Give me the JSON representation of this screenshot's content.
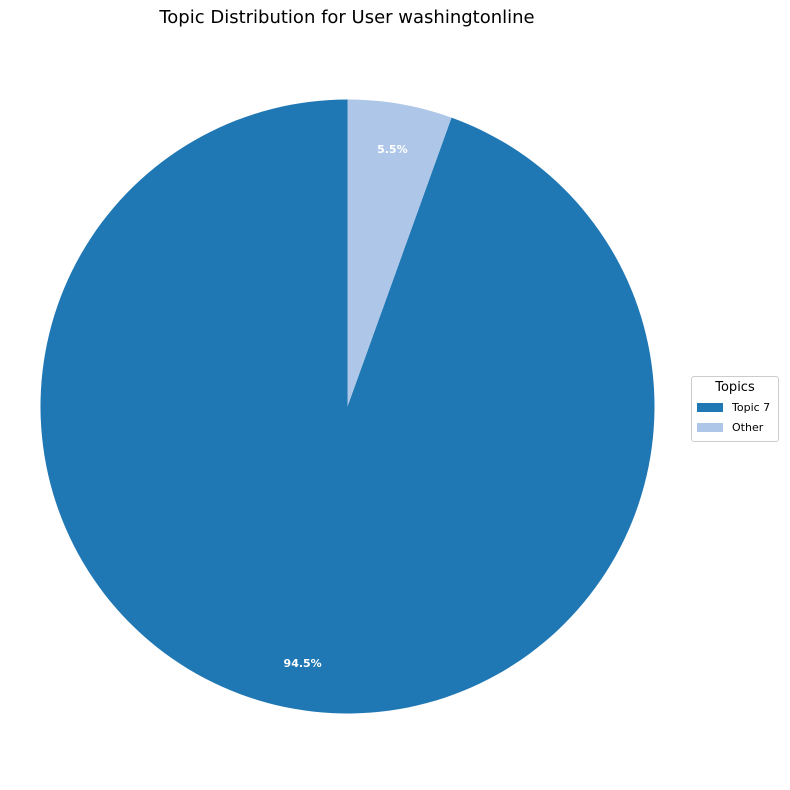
{
  "chart_data": {
    "type": "pie",
    "title": "Topic Distribution for User washingtonline",
    "legend_title": "Topics",
    "legend_position": "right",
    "start_angle": "top, clockwise",
    "slices": [
      {
        "label": "Topic 7",
        "value": 94.5,
        "display": "94.5%",
        "color": "#1f77b4"
      },
      {
        "label": "Other",
        "value": 5.5,
        "display": "5.5%",
        "color": "#aec7e8"
      }
    ]
  }
}
